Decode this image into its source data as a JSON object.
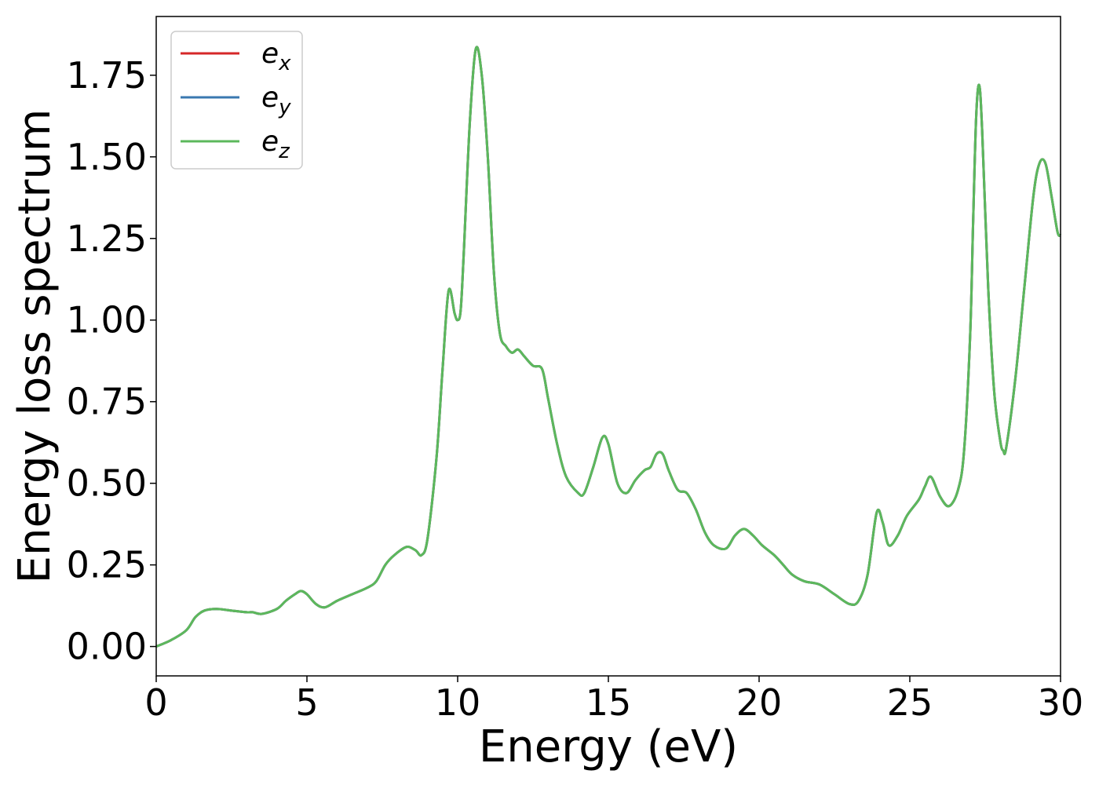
{
  "chart_data": {
    "type": "line",
    "title": "",
    "xlabel": "Energy (eV)",
    "ylabel": "Energy loss spectrum",
    "xlim": [
      0,
      30
    ],
    "ylim": [
      -0.09,
      1.93
    ],
    "xticks": [
      0,
      5,
      10,
      15,
      20,
      25,
      30
    ],
    "xtick_labels": [
      "0",
      "5",
      "10",
      "15",
      "20",
      "25",
      "30"
    ],
    "yticks": [
      0.0,
      0.25,
      0.5,
      0.75,
      1.0,
      1.25,
      1.5,
      1.75
    ],
    "ytick_labels": [
      "0.00",
      "0.25",
      "0.50",
      "0.75",
      "1.00",
      "1.25",
      "1.50",
      "1.75"
    ],
    "grid": false,
    "legend_position": "top-left",
    "x": [
      0,
      0.5,
      1.0,
      1.3,
      1.6,
      2.0,
      2.5,
      3.0,
      3.2,
      3.5,
      4.0,
      4.3,
      4.6,
      4.8,
      5.0,
      5.3,
      5.6,
      6.0,
      6.5,
      7.0,
      7.3,
      7.6,
      7.9,
      8.3,
      8.6,
      8.8,
      9.0,
      9.3,
      9.5,
      9.7,
      9.9,
      10.0,
      10.1,
      10.2,
      10.4,
      10.6,
      10.8,
      11.0,
      11.2,
      11.4,
      11.6,
      11.8,
      12.0,
      12.2,
      12.5,
      12.8,
      13.0,
      13.3,
      13.6,
      14.0,
      14.2,
      14.5,
      14.8,
      15.0,
      15.3,
      15.6,
      15.9,
      16.2,
      16.4,
      16.6,
      16.8,
      17.0,
      17.3,
      17.6,
      17.9,
      18.2,
      18.5,
      18.9,
      19.2,
      19.5,
      19.8,
      20.1,
      20.5,
      20.8,
      21.1,
      21.5,
      22.0,
      22.5,
      23.0,
      23.3,
      23.6,
      23.9,
      24.1,
      24.3,
      24.6,
      24.9,
      25.3,
      25.5,
      25.7,
      26.0,
      26.3,
      26.6,
      26.8,
      27.0,
      27.1,
      27.2,
      27.3,
      27.4,
      27.6,
      27.8,
      28.0,
      28.1,
      28.2,
      28.5,
      28.8,
      29.1,
      29.3,
      29.5,
      29.7,
      29.9,
      30.0
    ],
    "series": [
      {
        "name": "e_x",
        "color": "#d62728",
        "values": [
          0.0,
          0.02,
          0.05,
          0.09,
          0.11,
          0.115,
          0.11,
          0.105,
          0.105,
          0.1,
          0.115,
          0.14,
          0.16,
          0.17,
          0.16,
          0.13,
          0.12,
          0.14,
          0.16,
          0.18,
          0.2,
          0.25,
          0.28,
          0.305,
          0.295,
          0.28,
          0.33,
          0.58,
          0.85,
          1.09,
          1.02,
          1.0,
          1.03,
          1.2,
          1.6,
          1.83,
          1.75,
          1.5,
          1.15,
          0.96,
          0.92,
          0.9,
          0.91,
          0.89,
          0.86,
          0.85,
          0.76,
          0.62,
          0.52,
          0.47,
          0.47,
          0.55,
          0.64,
          0.62,
          0.5,
          0.47,
          0.51,
          0.54,
          0.55,
          0.59,
          0.59,
          0.54,
          0.48,
          0.47,
          0.42,
          0.35,
          0.31,
          0.3,
          0.34,
          0.36,
          0.34,
          0.31,
          0.28,
          0.25,
          0.22,
          0.2,
          0.19,
          0.16,
          0.13,
          0.14,
          0.22,
          0.41,
          0.38,
          0.31,
          0.34,
          0.4,
          0.45,
          0.49,
          0.52,
          0.46,
          0.43,
          0.48,
          0.6,
          0.95,
          1.3,
          1.62,
          1.72,
          1.58,
          1.1,
          0.78,
          0.63,
          0.6,
          0.61,
          0.82,
          1.1,
          1.38,
          1.48,
          1.48,
          1.38,
          1.27,
          1.26
        ]
      },
      {
        "name": "e_y",
        "color": "#3a78b0",
        "values": [
          0.0,
          0.02,
          0.05,
          0.09,
          0.11,
          0.115,
          0.11,
          0.105,
          0.105,
          0.1,
          0.115,
          0.14,
          0.16,
          0.17,
          0.16,
          0.13,
          0.12,
          0.14,
          0.16,
          0.18,
          0.2,
          0.25,
          0.28,
          0.305,
          0.295,
          0.28,
          0.33,
          0.58,
          0.85,
          1.09,
          1.02,
          1.0,
          1.03,
          1.2,
          1.6,
          1.83,
          1.75,
          1.5,
          1.15,
          0.96,
          0.92,
          0.9,
          0.91,
          0.89,
          0.86,
          0.85,
          0.76,
          0.62,
          0.52,
          0.47,
          0.47,
          0.55,
          0.64,
          0.62,
          0.5,
          0.47,
          0.51,
          0.54,
          0.55,
          0.59,
          0.59,
          0.54,
          0.48,
          0.47,
          0.42,
          0.35,
          0.31,
          0.3,
          0.34,
          0.36,
          0.34,
          0.31,
          0.28,
          0.25,
          0.22,
          0.2,
          0.19,
          0.16,
          0.13,
          0.14,
          0.22,
          0.41,
          0.38,
          0.31,
          0.34,
          0.4,
          0.45,
          0.49,
          0.52,
          0.46,
          0.43,
          0.48,
          0.6,
          0.95,
          1.3,
          1.62,
          1.72,
          1.58,
          1.1,
          0.78,
          0.63,
          0.6,
          0.61,
          0.82,
          1.1,
          1.38,
          1.48,
          1.48,
          1.38,
          1.27,
          1.26
        ]
      },
      {
        "name": "e_z",
        "color": "#5cb85c",
        "values": [
          0.0,
          0.02,
          0.05,
          0.09,
          0.11,
          0.115,
          0.11,
          0.105,
          0.105,
          0.1,
          0.115,
          0.14,
          0.16,
          0.17,
          0.16,
          0.13,
          0.12,
          0.14,
          0.16,
          0.18,
          0.2,
          0.25,
          0.28,
          0.305,
          0.295,
          0.28,
          0.33,
          0.58,
          0.85,
          1.09,
          1.02,
          1.0,
          1.03,
          1.2,
          1.6,
          1.83,
          1.75,
          1.5,
          1.15,
          0.96,
          0.92,
          0.9,
          0.91,
          0.89,
          0.86,
          0.85,
          0.76,
          0.62,
          0.52,
          0.47,
          0.47,
          0.55,
          0.64,
          0.62,
          0.5,
          0.47,
          0.51,
          0.54,
          0.55,
          0.59,
          0.59,
          0.54,
          0.48,
          0.47,
          0.42,
          0.35,
          0.31,
          0.3,
          0.34,
          0.36,
          0.34,
          0.31,
          0.28,
          0.25,
          0.22,
          0.2,
          0.19,
          0.16,
          0.13,
          0.14,
          0.22,
          0.41,
          0.38,
          0.31,
          0.34,
          0.4,
          0.45,
          0.49,
          0.52,
          0.46,
          0.43,
          0.48,
          0.6,
          0.95,
          1.3,
          1.62,
          1.72,
          1.58,
          1.1,
          0.78,
          0.63,
          0.6,
          0.61,
          0.82,
          1.1,
          1.38,
          1.48,
          1.48,
          1.38,
          1.27,
          1.26
        ]
      }
    ],
    "legend": [
      {
        "base": "e",
        "sub": "x",
        "color": "#d62728"
      },
      {
        "base": "e",
        "sub": "y",
        "color": "#3a78b0"
      },
      {
        "base": "e",
        "sub": "z",
        "color": "#5cb85c"
      }
    ]
  }
}
